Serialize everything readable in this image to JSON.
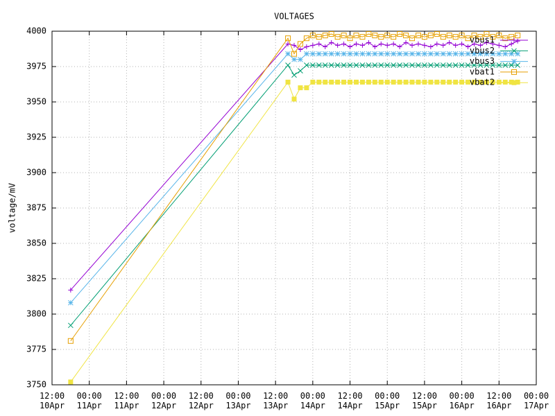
{
  "chart_data": {
    "type": "line",
    "title": "VOLTAGES",
    "ylabel": "voltage/mV",
    "x": [
      "10Apr 18:00",
      "13Apr 16:00",
      "13Apr 18:00",
      "13Apr 20:00",
      "13Apr 22:00",
      "14Apr 00:00",
      "14Apr 02:00",
      "14Apr 04:00",
      "14Apr 06:00",
      "14Apr 08:00",
      "14Apr 10:00",
      "14Apr 12:00",
      "14Apr 14:00",
      "14Apr 16:00",
      "14Apr 18:00",
      "14Apr 20:00",
      "14Apr 22:00",
      "15Apr 00:00",
      "15Apr 02:00",
      "15Apr 04:00",
      "15Apr 06:00",
      "15Apr 08:00",
      "15Apr 10:00",
      "15Apr 12:00",
      "15Apr 14:00",
      "15Apr 16:00",
      "15Apr 18:00",
      "15Apr 20:00",
      "15Apr 22:00",
      "16Apr 00:00",
      "16Apr 02:00",
      "16Apr 04:00",
      "16Apr 06:00",
      "16Apr 08:00",
      "16Apr 10:00",
      "16Apr 12:00",
      "16Apr 14:00",
      "16Apr 16:00",
      "16Apr 18:00"
    ],
    "series": [
      {
        "name": "vbus1",
        "color": "#9400d3",
        "marker": "plus",
        "values": [
          3817,
          3991,
          3990,
          3987,
          3989,
          3990,
          3991,
          3989,
          3992,
          3990,
          3991,
          3989,
          3991,
          3990,
          3992,
          3989,
          3991,
          3990,
          3991,
          3989,
          3992,
          3990,
          3991,
          3990,
          3989,
          3991,
          3990,
          3992,
          3990,
          3991,
          3989,
          3991,
          3990,
          3992,
          3991,
          3990,
          3989,
          3991,
          3993
        ]
      },
      {
        "name": "vbus2",
        "color": "#009e73",
        "marker": "cross",
        "values": [
          3792,
          3976,
          3969,
          3972,
          3976,
          3976,
          3976,
          3976,
          3976,
          3976,
          3976,
          3976,
          3976,
          3976,
          3976,
          3976,
          3976,
          3976,
          3976,
          3976,
          3976,
          3976,
          3976,
          3976,
          3976,
          3976,
          3976,
          3976,
          3976,
          3976,
          3976,
          3976,
          3976,
          3976,
          3976,
          3976,
          3976,
          3976,
          3976
        ]
      },
      {
        "name": "vbus3",
        "color": "#56b4e9",
        "marker": "star",
        "values": [
          3808,
          3984,
          3980,
          3980,
          3984,
          3984,
          3984,
          3984,
          3984,
          3984,
          3984,
          3984,
          3984,
          3984,
          3984,
          3984,
          3984,
          3984,
          3984,
          3984,
          3984,
          3984,
          3984,
          3984,
          3984,
          3984,
          3984,
          3984,
          3984,
          3984,
          3984,
          3984,
          3984,
          3984,
          3984,
          3984,
          3984,
          3984,
          3984
        ]
      },
      {
        "name": "vbat1",
        "color": "#e69f00",
        "marker": "square",
        "values": [
          3781,
          3995,
          3984,
          3991,
          3995,
          3997,
          3996,
          3997,
          3998,
          3996,
          3997,
          3995,
          3997,
          3996,
          3998,
          3997,
          3996,
          3997,
          3996,
          3998,
          3997,
          3995,
          3997,
          3996,
          3997,
          3998,
          3996,
          3997,
          3996,
          3997,
          3995,
          3997,
          3996,
          3998,
          3996,
          3997,
          3995,
          3996,
          3997
        ]
      },
      {
        "name": "vbat2",
        "color": "#f0e442",
        "marker": "filled-square",
        "values": [
          3752,
          3964,
          3952,
          3960,
          3960,
          3964,
          3964,
          3964,
          3964,
          3964,
          3964,
          3964,
          3964,
          3964,
          3964,
          3964,
          3964,
          3964,
          3964,
          3964,
          3964,
          3964,
          3964,
          3964,
          3964,
          3964,
          3964,
          3964,
          3964,
          3964,
          3964,
          3964,
          3964,
          3964,
          3964,
          3964,
          3964,
          3964,
          3964
        ]
      }
    ],
    "xlim": [
      "10Apr 12:00",
      "17Apr 00:00"
    ],
    "xticks": [
      {
        "value": "10Apr 12:00",
        "label": "12:00 10Apr"
      },
      {
        "value": "11Apr 00:00",
        "label": "00:00 11Apr"
      },
      {
        "value": "11Apr 12:00",
        "label": "12:00 11Apr"
      },
      {
        "value": "12Apr 00:00",
        "label": "00:00 12Apr"
      },
      {
        "value": "12Apr 12:00",
        "label": "12:00 12Apr"
      },
      {
        "value": "13Apr 00:00",
        "label": "00:00 13Apr"
      },
      {
        "value": "13Apr 12:00",
        "label": "12:00 13Apr"
      },
      {
        "value": "14Apr 00:00",
        "label": "00:00 14Apr"
      },
      {
        "value": "14Apr 12:00",
        "label": "12:00 14Apr"
      },
      {
        "value": "15Apr 00:00",
        "label": "00:00 15Apr"
      },
      {
        "value": "15Apr 12:00",
        "label": "12:00 15Apr"
      },
      {
        "value": "16Apr 00:00",
        "label": "00:00 16Apr"
      },
      {
        "value": "16Apr 12:00",
        "label": "12:00 16Apr"
      },
      {
        "value": "17Apr 00:00",
        "label": "00:00 17Apr"
      }
    ],
    "ylim": [
      3750,
      4000
    ],
    "yticks": [
      3750,
      3775,
      3800,
      3825,
      3850,
      3875,
      3900,
      3925,
      3950,
      3975,
      4000
    ],
    "grid": true,
    "legend": "top-right"
  }
}
